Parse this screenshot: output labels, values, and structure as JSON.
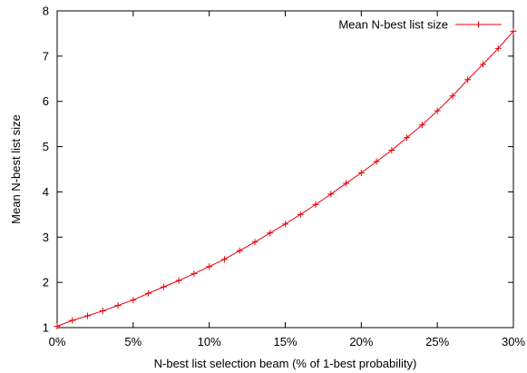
{
  "chart_data": {
    "type": "line",
    "xlabel": "N-best list selection beam (% of 1-best probability)",
    "ylabel": "Mean N-best list size",
    "xlim": [
      0,
      30
    ],
    "ylim": [
      1,
      8
    ],
    "x_ticks": [
      0,
      5,
      10,
      15,
      20,
      25,
      30
    ],
    "x_tick_labels": [
      "0%",
      "5%",
      "10%",
      "15%",
      "20%",
      "25%",
      "30%"
    ],
    "y_ticks": [
      1,
      2,
      3,
      4,
      5,
      6,
      7,
      8
    ],
    "y_tick_labels": [
      "1",
      "2",
      "3",
      "4",
      "5",
      "6",
      "7",
      "8"
    ],
    "legend_position": "top-right",
    "grid": false,
    "series": [
      {
        "name": "Mean N-best list size",
        "color": "#e8000b",
        "marker": "plus",
        "x": [
          0,
          1,
          2,
          3,
          4,
          5,
          6,
          7,
          8,
          9,
          10,
          11,
          12,
          13,
          14,
          15,
          16,
          17,
          18,
          19,
          20,
          21,
          22,
          23,
          24,
          25,
          26,
          27,
          28,
          29,
          30
        ],
        "y": [
          1.03,
          1.16,
          1.26,
          1.37,
          1.49,
          1.61,
          1.76,
          1.9,
          2.04,
          2.19,
          2.35,
          2.51,
          2.7,
          2.89,
          3.09,
          3.29,
          3.5,
          3.72,
          3.95,
          4.19,
          4.42,
          4.67,
          4.92,
          5.2,
          5.48,
          5.79,
          6.12,
          6.48,
          6.82,
          7.17,
          7.55
        ]
      }
    ]
  }
}
